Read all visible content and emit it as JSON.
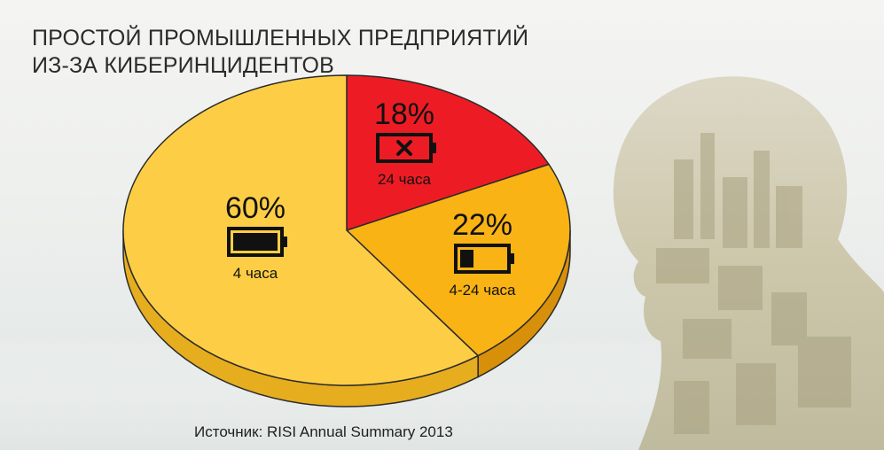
{
  "title_lines": [
    "ПРОСТОЙ ПРОМЫШЛЕННЫХ ПРЕДПРИЯТИЙ",
    "ИЗ-ЗА КИБЕРИНЦИДЕНТОВ"
  ],
  "source": "Источник: RISI Annual Summary 2013",
  "colors": {
    "slice_60": "#fdce45",
    "slice_60_side": "#e6ad1f",
    "slice_18": "#ed1c24",
    "slice_18_side": "#b5121a",
    "slice_22": "#f9b314",
    "slice_22_side": "#d88f0a",
    "outline": "#2a2a2a",
    "background_figure": "#c9c3a6"
  },
  "chart_data": {
    "type": "pie",
    "title": "ПРОСТОЙ ПРОМЫШЛЕННЫХ ПРЕДПРИЯТИЙ ИЗ-ЗА КИБЕРИНЦИДЕНТОВ",
    "slices": [
      {
        "label": "24 часа",
        "value": 18,
        "value_label": "18%",
        "icon": "battery-empty-x-icon"
      },
      {
        "label": "4-24 часа",
        "value": 22,
        "value_label": "22%",
        "icon": "battery-low-icon"
      },
      {
        "label": "4 часа",
        "value": 60,
        "value_label": "60%",
        "icon": "battery-full-icon"
      }
    ]
  }
}
